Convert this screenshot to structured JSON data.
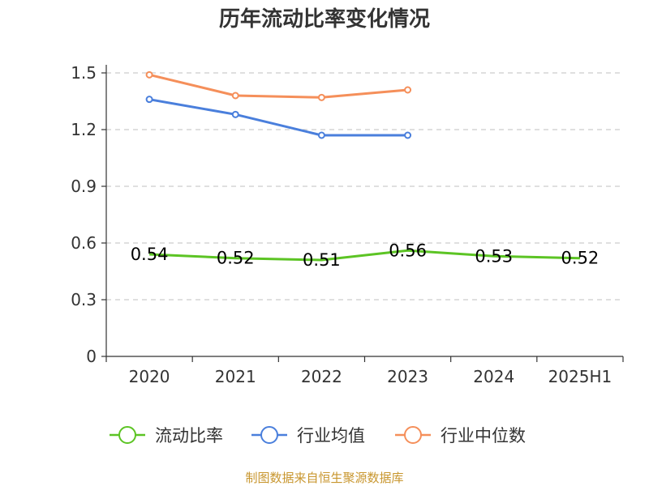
{
  "chart_data": {
    "type": "line",
    "title": "历年流动比率变化情况",
    "categories": [
      "2020",
      "2021",
      "2022",
      "2023",
      "2024",
      "2025H1"
    ],
    "ylim": [
      0,
      1.5
    ],
    "yticks": [
      "0",
      "0.3",
      "0.6",
      "0.9",
      "1.2",
      "1.5"
    ],
    "ytick_values": [
      0,
      0.3,
      0.6,
      0.9,
      1.2,
      1.5
    ],
    "grid": true,
    "legend_position": "bottom",
    "series": [
      {
        "name": "流动比率",
        "color": "#5cc424",
        "values": [
          0.54,
          0.52,
          0.51,
          0.56,
          0.53,
          0.52
        ],
        "labels": [
          "0.54",
          "0.52",
          "0.51",
          "0.56",
          "0.53",
          "0.52"
        ],
        "markers": false
      },
      {
        "name": "行业均值",
        "color": "#4a7fdc",
        "values": [
          1.36,
          1.28,
          1.17,
          1.17,
          null,
          null
        ],
        "markers": true
      },
      {
        "name": "行业中位数",
        "color": "#f58f5a",
        "values": [
          1.49,
          1.38,
          1.37,
          1.41,
          null,
          null
        ],
        "markers": true
      }
    ]
  },
  "source": "制图数据来自恒生聚源数据库"
}
